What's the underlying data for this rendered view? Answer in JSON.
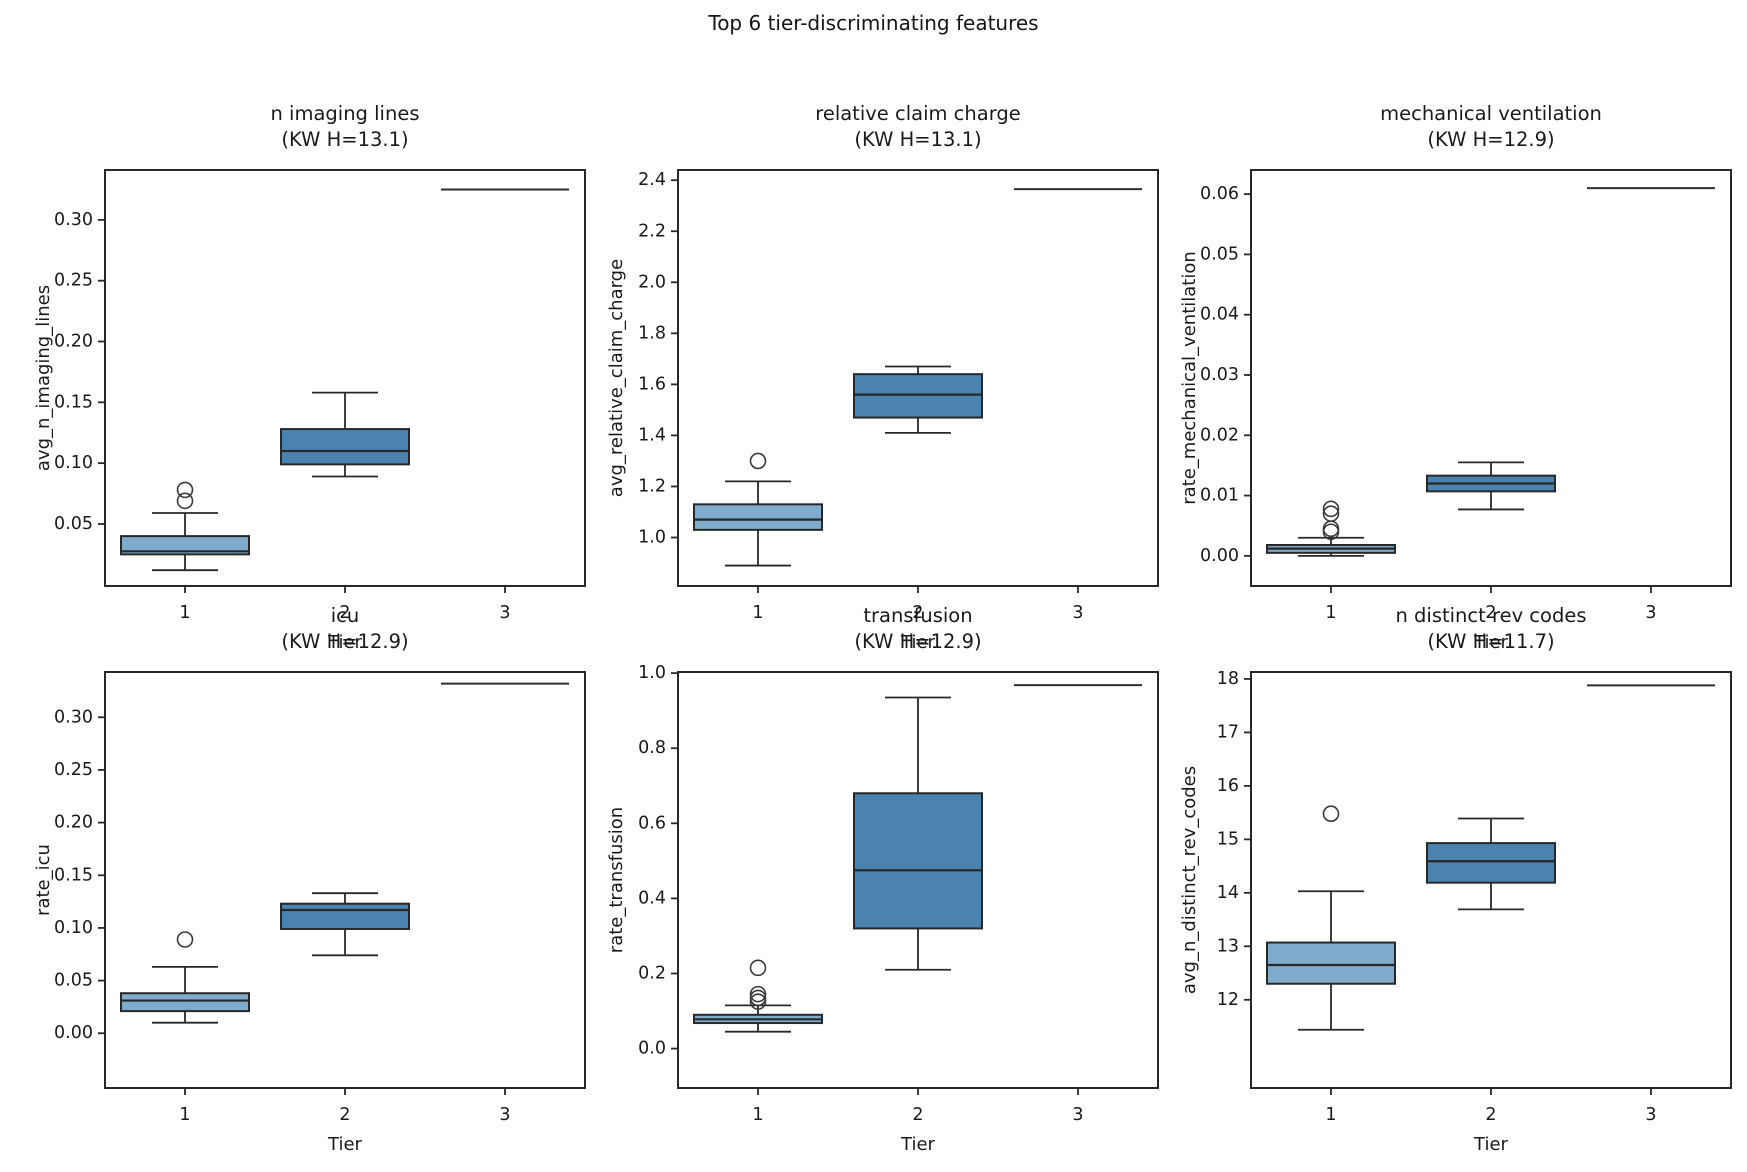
{
  "figure": {
    "suptitle": "Top 6 tier-discriminating features",
    "background": "#ffffff",
    "text_color": "#1a1a1a",
    "edge_color": "#282828",
    "flier_color": "#3a3a3a",
    "box_fill_colors": {
      "tier1": "#7FABCC",
      "tier2": "#4A83B0"
    },
    "xlabel": "Tier",
    "x_categories": [
      "1",
      "2",
      "3"
    ]
  },
  "chart_data": [
    {
      "type": "box",
      "title": "n imaging lines",
      "subtitle": "(KW H=13.1)",
      "kw_h": 13.1,
      "ylabel": "avg_n_imaging_lines",
      "xlabel": "Tier",
      "categories": [
        "1",
        "2",
        "3"
      ],
      "ylim": [
        -0.001,
        0.341
      ],
      "yticks": [
        0.05,
        0.1,
        0.15,
        0.2,
        0.25,
        0.3
      ],
      "ytick_decimals": 2,
      "boxes": [
        {
          "tier": "1",
          "whislo": 0.012,
          "q1": 0.025,
          "med": 0.0275,
          "q3": 0.04,
          "whishi": 0.059,
          "fliers": [
            0.069,
            0.078
          ]
        },
        {
          "tier": "2",
          "whislo": 0.089,
          "q1": 0.099,
          "med": 0.11,
          "q3": 0.128,
          "whishi": 0.158,
          "fliers": []
        },
        {
          "tier": "3",
          "single_value": 0.325
        }
      ]
    },
    {
      "type": "box",
      "title": "relative claim charge",
      "subtitle": "(KW H=13.1)",
      "kw_h": 13.1,
      "ylabel": "avg_relative_claim_charge",
      "xlabel": "Tier",
      "categories": [
        "1",
        "2",
        "3"
      ],
      "ylim": [
        0.81,
        2.44
      ],
      "yticks": [
        1.0,
        1.2,
        1.4,
        1.6,
        1.8,
        2.0,
        2.2,
        2.4
      ],
      "ytick_decimals": 1,
      "boxes": [
        {
          "tier": "1",
          "whislo": 0.89,
          "q1": 1.03,
          "med": 1.07,
          "q3": 1.13,
          "whishi": 1.22,
          "fliers": [
            1.3
          ]
        },
        {
          "tier": "2",
          "whislo": 1.41,
          "q1": 1.47,
          "med": 1.56,
          "q3": 1.64,
          "whishi": 1.67,
          "fliers": []
        },
        {
          "tier": "3",
          "single_value": 2.365
        }
      ]
    },
    {
      "type": "box",
      "title": "mechanical ventilation",
      "subtitle": "(KW H=12.9)",
      "kw_h": 12.9,
      "ylabel": "rate_mechanical_ventilation",
      "xlabel": "Tier",
      "categories": [
        "1",
        "2",
        "3"
      ],
      "ylim": [
        -0.005,
        0.064
      ],
      "yticks": [
        0.0,
        0.01,
        0.02,
        0.03,
        0.04,
        0.05,
        0.06
      ],
      "ytick_decimals": 2,
      "boxes": [
        {
          "tier": "1",
          "whislo": 0.0,
          "q1": 0.0005,
          "med": 0.0012,
          "q3": 0.0018,
          "whishi": 0.003,
          "fliers": [
            0.004,
            0.0045,
            0.007,
            0.0078
          ]
        },
        {
          "tier": "2",
          "whislo": 0.0077,
          "q1": 0.0107,
          "med": 0.012,
          "q3": 0.0133,
          "whishi": 0.0155,
          "fliers": []
        },
        {
          "tier": "3",
          "single_value": 0.061
        }
      ]
    },
    {
      "type": "box",
      "title": "icu",
      "subtitle": "(KW H=12.9)",
      "kw_h": 12.9,
      "ylabel": "rate_icu",
      "xlabel": "Tier",
      "categories": [
        "1",
        "2",
        "3"
      ],
      "ylim": [
        -0.052,
        0.343
      ],
      "yticks": [
        0.0,
        0.05,
        0.1,
        0.15,
        0.2,
        0.25,
        0.3
      ],
      "ytick_decimals": 2,
      "boxes": [
        {
          "tier": "1",
          "whislo": 0.01,
          "q1": 0.021,
          "med": 0.031,
          "q3": 0.038,
          "whishi": 0.063,
          "fliers": [
            0.089
          ]
        },
        {
          "tier": "2",
          "whislo": 0.074,
          "q1": 0.099,
          "med": 0.117,
          "q3": 0.123,
          "whishi": 0.133,
          "fliers": []
        },
        {
          "tier": "3",
          "single_value": 0.332
        }
      ]
    },
    {
      "type": "box",
      "title": "transfusion",
      "subtitle": "(KW H=12.9)",
      "kw_h": 12.9,
      "ylabel": "rate_transfusion",
      "xlabel": "Tier",
      "categories": [
        "1",
        "2",
        "3"
      ],
      "ylim": [
        -0.105,
        1.003
      ],
      "yticks": [
        0.0,
        0.2,
        0.4,
        0.6,
        0.8,
        1.0
      ],
      "ytick_decimals": 1,
      "boxes": [
        {
          "tier": "1",
          "whislo": 0.045,
          "q1": 0.068,
          "med": 0.078,
          "q3": 0.09,
          "whishi": 0.115,
          "fliers": [
            0.125,
            0.135,
            0.145,
            0.215
          ]
        },
        {
          "tier": "2",
          "whislo": 0.21,
          "q1": 0.32,
          "med": 0.475,
          "q3": 0.68,
          "whishi": 0.935,
          "fliers": []
        },
        {
          "tier": "3",
          "single_value": 0.968
        }
      ]
    },
    {
      "type": "box",
      "title": "n distinct rev codes",
      "subtitle": "(KW H=11.7)",
      "kw_h": 11.7,
      "ylabel": "avg_n_distinct_rev_codes",
      "xlabel": "Tier",
      "categories": [
        "1",
        "2",
        "3"
      ],
      "ylim": [
        10.35,
        18.13
      ],
      "yticks": [
        12,
        13,
        14,
        15,
        16,
        17,
        18
      ],
      "ytick_decimals": 0,
      "boxes": [
        {
          "tier": "1",
          "whislo": 11.44,
          "q1": 12.3,
          "med": 12.65,
          "q3": 13.07,
          "whishi": 14.03,
          "fliers": [
            15.48
          ]
        },
        {
          "tier": "2",
          "whislo": 13.69,
          "q1": 14.19,
          "med": 14.59,
          "q3": 14.93,
          "whishi": 15.39,
          "fliers": []
        },
        {
          "tier": "3",
          "single_value": 17.88
        }
      ]
    }
  ]
}
